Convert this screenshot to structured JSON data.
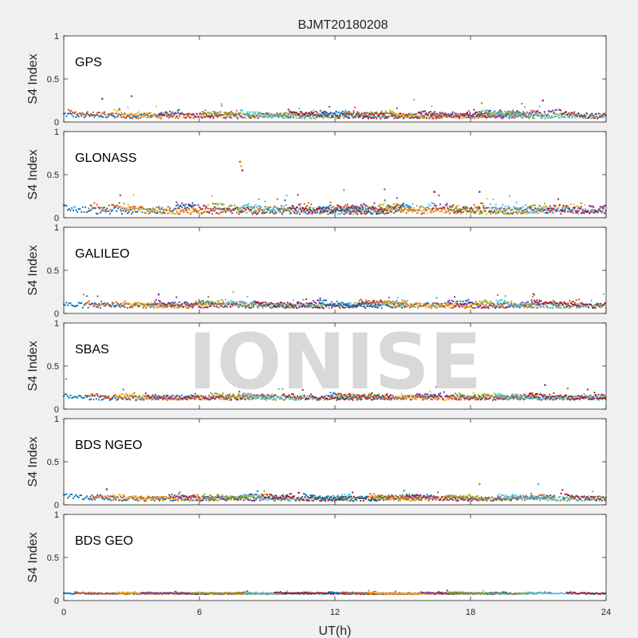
{
  "chart_data": {
    "type": "scatter",
    "title": "BJMT20180208",
    "xlabel": "UT(h)",
    "ylabel": "S4 Index",
    "xlim": [
      0,
      24
    ],
    "xticks": [
      "0",
      "6",
      "12",
      "18",
      "24"
    ],
    "ylim": [
      0,
      1
    ],
    "yticks": [
      "0",
      "0.5",
      "1"
    ],
    "watermark": "IONISE",
    "colors": [
      "#0072BD",
      "#D95319",
      "#EDB120",
      "#7E2F8E",
      "#77AC30",
      "#4DBEEE",
      "#A2142F"
    ],
    "panels": [
      {
        "name": "GPS",
        "baseline": 0.07,
        "noise": 0.03,
        "spikes": [
          [
            1.7,
            0.27
          ],
          [
            3.0,
            0.3
          ],
          [
            15.5,
            0.26
          ],
          [
            21.2,
            0.25
          ],
          [
            18.5,
            0.22
          ]
        ]
      },
      {
        "name": "GLONASS",
        "baseline": 0.08,
        "noise": 0.04,
        "spikes": [
          [
            7.8,
            0.65
          ],
          [
            7.85,
            0.6
          ],
          [
            7.9,
            0.55
          ],
          [
            14.2,
            0.33
          ],
          [
            12.4,
            0.32
          ],
          [
            16.4,
            0.3
          ],
          [
            18.4,
            0.3
          ],
          [
            2.5,
            0.26
          ]
        ]
      },
      {
        "name": "GALILEO",
        "baseline": 0.09,
        "noise": 0.03,
        "spikes": [
          [
            7.5,
            0.25
          ],
          [
            4.2,
            0.22
          ],
          [
            1.5,
            0.2
          ],
          [
            16.5,
            0.18
          ]
        ]
      },
      {
        "name": "SBAS",
        "baseline": 0.13,
        "noise": 0.025,
        "spikes": [
          [
            21.3,
            0.28
          ],
          [
            22.3,
            0.24
          ],
          [
            0.1,
            0.35
          ]
        ]
      },
      {
        "name": "BDS NGEO",
        "baseline": 0.07,
        "noise": 0.025,
        "spikes": [
          [
            18.4,
            0.24
          ],
          [
            21.0,
            0.24
          ],
          [
            10.4,
            0.14
          ],
          [
            1.9,
            0.18
          ]
        ]
      },
      {
        "name": "BDS GEO",
        "baseline": 0.08,
        "noise": 0.008,
        "spikes": []
      }
    ]
  }
}
